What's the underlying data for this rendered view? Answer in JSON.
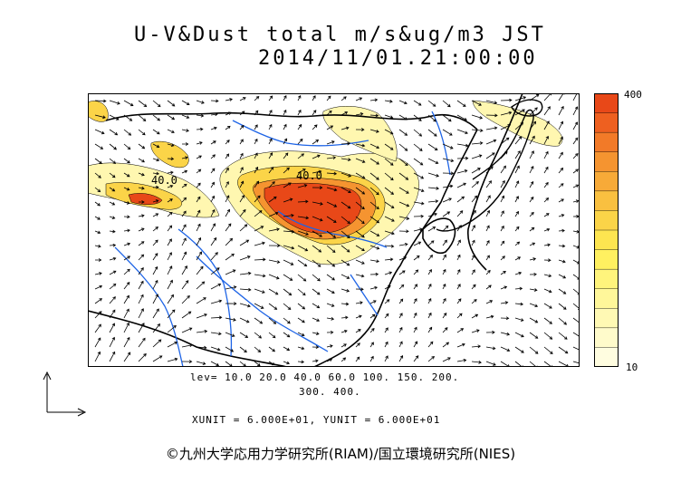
{
  "title": {
    "line1": "U-V&Dust total m/s&ug/m3 JST",
    "line2": "2014/11/01.21:00:00"
  },
  "legend": {
    "max_label": "400",
    "min_label": "10",
    "colors": [
      "#e84818",
      "#ee6020",
      "#f27a28",
      "#f59430",
      "#f7aa38",
      "#f9c040",
      "#fbd448",
      "#fde550",
      "#fff060",
      "#fff47c",
      "#fff79a",
      "#fff9b4",
      "#fffbcb",
      "#fffde0"
    ]
  },
  "map_labels": {
    "contour_label_1": "40.0",
    "contour_label_2": "40.0"
  },
  "footer": {
    "levels_line1": "lev= 10.0 20.0 40.0 60.0 100. 150. 200.",
    "levels_line2": "300. 400.",
    "units": "XUNIT = 6.000E+01, YUNIT = 6.000E+01",
    "copyright": "©九州大学応用力学研究所(RIAM)/国立環境研究所(NIES)"
  },
  "colors": {
    "coast": "#000000",
    "river": "#1e64e6",
    "dust_low": "#fff7b0",
    "dust_mid": "#f9c040",
    "dust_high": "#e84818",
    "vector": "#000000"
  }
}
